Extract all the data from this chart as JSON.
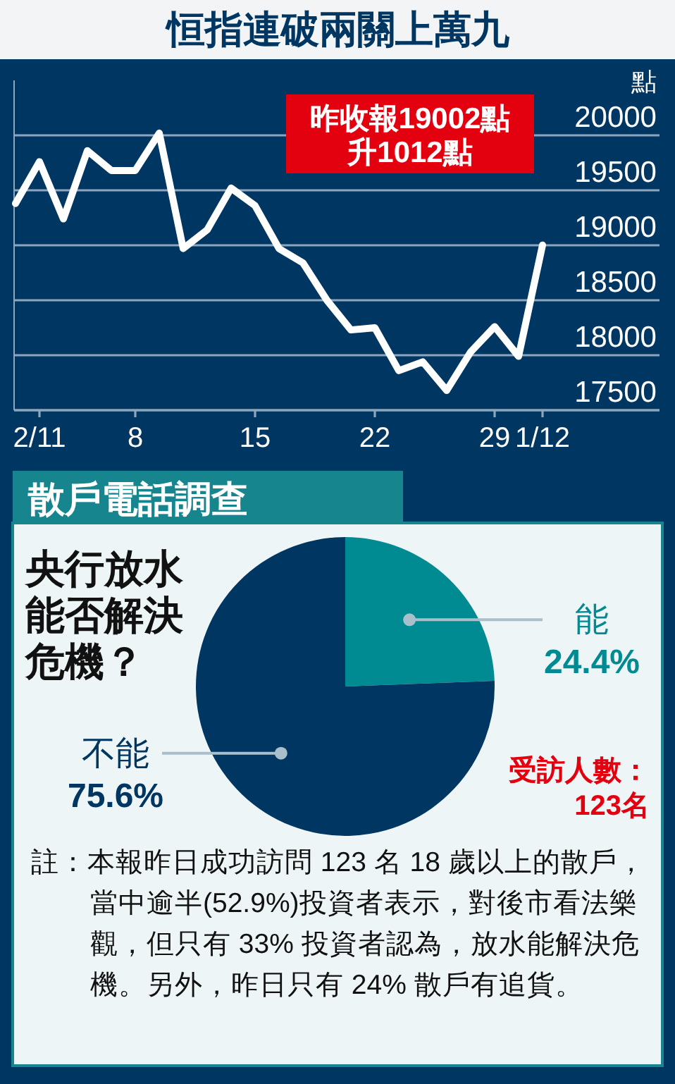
{
  "chart_data": [
    {
      "type": "line",
      "title": "恒指連破兩關上萬九",
      "ylabel": "點",
      "categories": [
        null,
        "2/11",
        null,
        null,
        null,
        "8",
        null,
        null,
        null,
        null,
        "15",
        null,
        null,
        null,
        null,
        "22",
        null,
        null,
        null,
        null,
        "29",
        null,
        "1/12"
      ],
      "series": [
        {
          "color": "#ffffff",
          "values": [
            19380,
            19760,
            19240,
            19860,
            19680,
            19680,
            20020,
            18970,
            19140,
            19520,
            19360,
            18970,
            18840,
            18500,
            18230,
            18250,
            17860,
            17940,
            17680,
            18030,
            18260,
            17990,
            19002
          ]
        }
      ],
      "ylim": [
        17500,
        20500
      ],
      "yticks": [
        17500,
        18000,
        18500,
        19000,
        19500,
        20000
      ],
      "grid": "y",
      "marker": "none",
      "line_style": "solid",
      "annotations": [
        "昨收報19002點",
        "升1012點"
      ]
    },
    {
      "type": "pie",
      "title": "散戶電話調查",
      "subtitle": "央行放水能否解決危機？",
      "categories": [
        "能",
        "不能"
      ],
      "values": [
        24.4,
        75.6
      ],
      "colors": [
        "#008a91",
        "#003662"
      ],
      "value_labels": [
        "24.4%",
        "75.6%"
      ],
      "annotations": [
        "受訪人數：123名",
        "註：本報昨日成功訪問 123 名 18 歲以上的散戶，當中逾半(52.9%)投資者表示，對後市看法樂觀，但只有 33% 投資者認為，放水能解決危機。另外，昨日只有 24% 散戶有追貨。"
      ]
    }
  ]
}
